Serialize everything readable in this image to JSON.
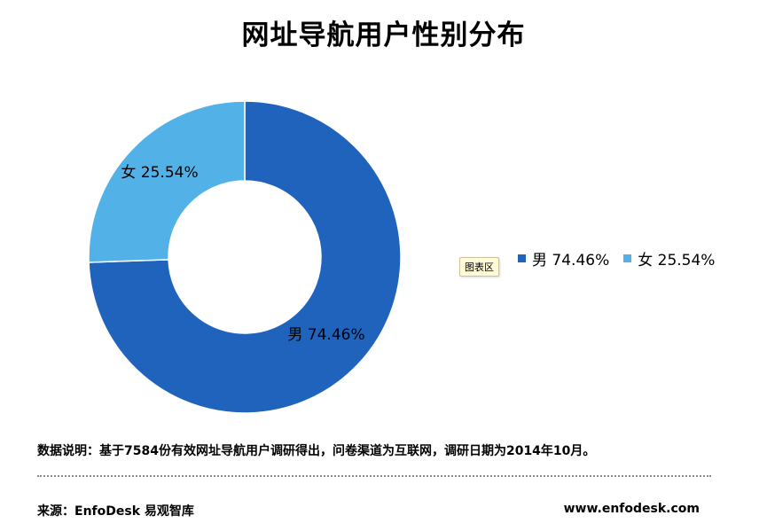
{
  "chart_data": {
    "type": "pie",
    "donut": true,
    "title": "网址导航用户性别分布",
    "categories": [
      "男",
      "女"
    ],
    "values": [
      74.46,
      25.54
    ],
    "data_labels": [
      "男  74.46%",
      "女  25.54%"
    ],
    "colors": [
      "#1f63bd",
      "#52b2e8"
    ],
    "legend": {
      "placement": "right",
      "entries": [
        "男  74.46%",
        "女  25.54%"
      ]
    }
  },
  "tooltip": "图表区",
  "footer": {
    "note": "数据说明：基于7584份有效网址导航用户调研得出，问卷渠道为互联网，调研日期为2014年10月。",
    "source": "来源：EnfoDesk 易观智库",
    "website": "www.enfodesk.com"
  }
}
